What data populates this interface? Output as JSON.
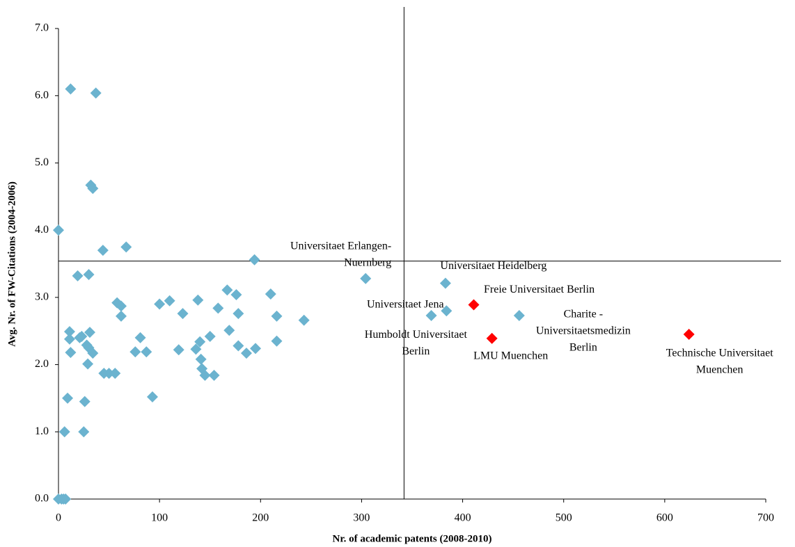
{
  "chart_data": {
    "type": "scatter",
    "x_label": "Nr. of academic patents (2008-2010)",
    "y_label": "Avg. Nr. of FW-Citations (2004-2006)",
    "xlim": [
      0,
      700
    ],
    "xticks": [
      0,
      100,
      200,
      300,
      400,
      500,
      600,
      700
    ],
    "ylim": [
      0,
      7
    ],
    "yticks": [
      {
        "value": 0,
        "label": "0.0"
      },
      {
        "value": 1,
        "label": "1.0"
      },
      {
        "value": 2,
        "label": "2.0"
      },
      {
        "value": 3,
        "label": "3.0"
      },
      {
        "value": 4,
        "label": "4.0"
      },
      {
        "value": 5,
        "label": "5.0"
      },
      {
        "value": 6,
        "label": "6.0"
      },
      {
        "value": 7,
        "label": "7.0"
      }
    ],
    "grid": false,
    "ref_x": 342,
    "ref_y": 3.54,
    "series": [
      {
        "color": "#6bb3cf",
        "x": [
          0,
          3,
          5,
          7,
          0,
          12,
          37,
          32,
          34,
          44,
          67,
          19,
          30,
          194,
          11,
          11,
          12,
          21,
          23,
          31,
          28,
          30,
          34,
          29,
          9,
          26,
          6,
          25,
          45,
          50,
          56,
          58,
          62,
          62,
          81,
          76,
          87,
          93,
          100,
          110,
          123,
          119,
          138,
          136,
          140,
          141,
          142,
          145,
          150,
          154,
          158,
          167,
          176,
          178,
          169,
          178,
          186,
          195,
          210,
          216,
          216,
          243,
          304,
          383,
          369,
          384,
          456
        ],
        "values": [
          0,
          0,
          0,
          0,
          4.0,
          6.1,
          6.04,
          4.67,
          4.62,
          3.7,
          3.75,
          3.32,
          3.34,
          3.56,
          2.49,
          2.38,
          2.18,
          2.4,
          2.42,
          2.48,
          2.29,
          2.25,
          2.17,
          2.01,
          1.5,
          1.45,
          1.0,
          1.0,
          1.87,
          1.87,
          1.87,
          2.92,
          2.87,
          2.72,
          2.4,
          2.19,
          2.19,
          1.52,
          2.9,
          2.95,
          2.76,
          2.22,
          2.96,
          2.23,
          2.34,
          2.08,
          1.94,
          1.84,
          2.42,
          1.84,
          2.84,
          3.11,
          3.04,
          2.76,
          2.51,
          2.28,
          2.17,
          2.24,
          3.05,
          2.72,
          2.35,
          2.66,
          3.28,
          3.21,
          2.73,
          2.8,
          2.73
        ],
        "labels": [
          null,
          null,
          null,
          null,
          null,
          null,
          null,
          null,
          null,
          null,
          null,
          null,
          null,
          null,
          null,
          null,
          null,
          null,
          null,
          null,
          null,
          null,
          null,
          null,
          null,
          null,
          null,
          null,
          null,
          null,
          null,
          null,
          null,
          null,
          null,
          null,
          null,
          null,
          null,
          null,
          null,
          null,
          null,
          null,
          null,
          null,
          null,
          null,
          null,
          null,
          null,
          null,
          null,
          null,
          null,
          null,
          null,
          null,
          null,
          null,
          null,
          null,
          [
            "Universitaet Erlangen-",
            "Nuernberg"
          ],
          [
            "Universitaet Heidelberg"
          ],
          [
            "Universitaet Jena"
          ],
          [
            "Humboldt Universitaet",
            "Berlin"
          ],
          [
            "Charite -",
            "Universitaetsmedizin",
            "Berlin"
          ]
        ]
      },
      {
        "color": "#ff0000",
        "x": [
          411,
          429,
          624
        ],
        "values": [
          2.89,
          2.39,
          2.45
        ],
        "labels": [
          [
            "Freie Universitaet Berlin"
          ],
          [
            "LMU Muenchen"
          ],
          [
            "Technische Universitaet",
            "Muenchen"
          ]
        ]
      }
    ]
  }
}
